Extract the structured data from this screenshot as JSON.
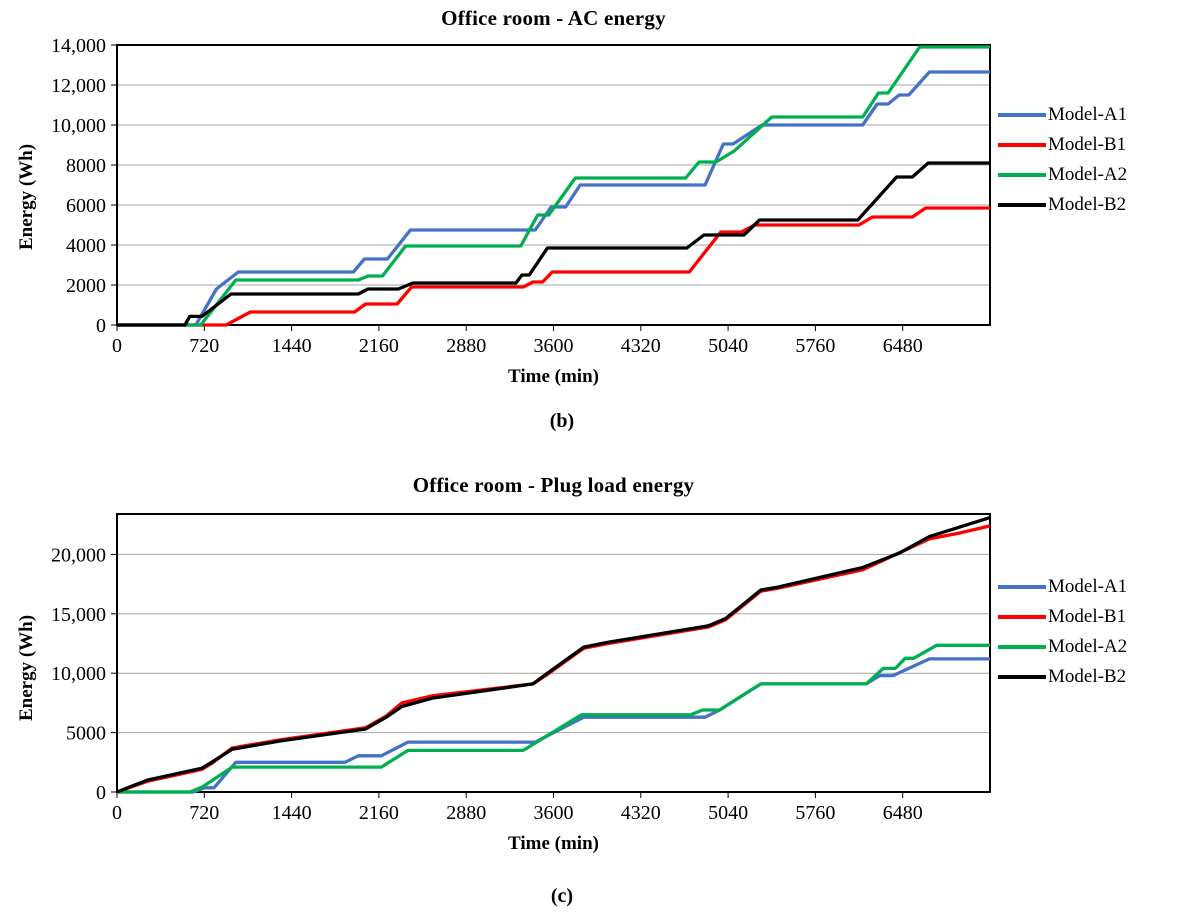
{
  "figure": {
    "background_color": "#ffffff",
    "grid_color": "#a6a6a6",
    "axis_color": "#000000"
  },
  "chart_data": [
    {
      "type": "line",
      "title": "Office room - AC energy",
      "caption": "(b)",
      "xlabel": "Time (min)",
      "ylabel": "Energy (Wh)",
      "xlim": [
        0,
        7200
      ],
      "ylim": [
        0,
        14000
      ],
      "plot_ymax": 14000,
      "grid": "horizontal",
      "legend_position": "right",
      "xticks": [
        {
          "value": 0,
          "label": "0"
        },
        {
          "value": 720,
          "label": "720"
        },
        {
          "value": 1440,
          "label": "1440"
        },
        {
          "value": 2160,
          "label": "2160"
        },
        {
          "value": 2880,
          "label": "2880"
        },
        {
          "value": 3600,
          "label": "3600"
        },
        {
          "value": 4320,
          "label": "4320"
        },
        {
          "value": 5040,
          "label": "5040"
        },
        {
          "value": 5760,
          "label": "5760"
        },
        {
          "value": 6480,
          "label": "6480"
        }
      ],
      "yticks": [
        {
          "value": 0,
          "label": "0"
        },
        {
          "value": 2000,
          "label": "2000"
        },
        {
          "value": 4000,
          "label": "4000"
        },
        {
          "value": 6000,
          "label": "6000"
        },
        {
          "value": 8000,
          "label": "8000"
        },
        {
          "value": 10000,
          "label": "10,000"
        },
        {
          "value": 12000,
          "label": "12,000"
        },
        {
          "value": 14000,
          "label": "14,000"
        }
      ],
      "series": [
        {
          "name": "Model-A1",
          "color": "#4472C4",
          "points": [
            [
              0,
              0
            ],
            [
              650,
              0
            ],
            [
              820,
              1800
            ],
            [
              1000,
              2650
            ],
            [
              1950,
              2650
            ],
            [
              2040,
              3300
            ],
            [
              2230,
              3300
            ],
            [
              2420,
              4750
            ],
            [
              3450,
              4750
            ],
            [
              3580,
              5900
            ],
            [
              3700,
              5900
            ],
            [
              3820,
              7000
            ],
            [
              4850,
              7000
            ],
            [
              5000,
              9050
            ],
            [
              5080,
              9050
            ],
            [
              5320,
              10000
            ],
            [
              6150,
              10000
            ],
            [
              6270,
              11050
            ],
            [
              6360,
              11050
            ],
            [
              6450,
              11500
            ],
            [
              6530,
              11500
            ],
            [
              6700,
              12650
            ],
            [
              7200,
              12650
            ]
          ]
        },
        {
          "name": "Model-B1",
          "color": "#FF0000",
          "points": [
            [
              0,
              0
            ],
            [
              900,
              0
            ],
            [
              1100,
              650
            ],
            [
              1960,
              650
            ],
            [
              2050,
              1050
            ],
            [
              2310,
              1050
            ],
            [
              2430,
              1900
            ],
            [
              3350,
              1900
            ],
            [
              3430,
              2150
            ],
            [
              3510,
              2150
            ],
            [
              3590,
              2650
            ],
            [
              4720,
              2650
            ],
            [
              4980,
              4650
            ],
            [
              5150,
              4650
            ],
            [
              5260,
              5000
            ],
            [
              6120,
              5000
            ],
            [
              6230,
              5400
            ],
            [
              6560,
              5400
            ],
            [
              6670,
              5850
            ],
            [
              7200,
              5850
            ]
          ]
        },
        {
          "name": "Model-A2",
          "color": "#00B050",
          "points": [
            [
              0,
              0
            ],
            [
              690,
              0
            ],
            [
              980,
              2250
            ],
            [
              1990,
              2250
            ],
            [
              2070,
              2450
            ],
            [
              2190,
              2450
            ],
            [
              2380,
              3950
            ],
            [
              3330,
              3950
            ],
            [
              3470,
              5500
            ],
            [
              3560,
              5500
            ],
            [
              3780,
              7350
            ],
            [
              4690,
              7350
            ],
            [
              4800,
              8150
            ],
            [
              4940,
              8150
            ],
            [
              5090,
              8700
            ],
            [
              5400,
              10400
            ],
            [
              6150,
              10400
            ],
            [
              6280,
              11600
            ],
            [
              6360,
              11600
            ],
            [
              6620,
              13900
            ],
            [
              7200,
              13900
            ]
          ]
        },
        {
          "name": "Model-B2",
          "color": "#000000",
          "points": [
            [
              0,
              0
            ],
            [
              560,
              0
            ],
            [
              600,
              430
            ],
            [
              700,
              430
            ],
            [
              940,
              1550
            ],
            [
              1990,
              1550
            ],
            [
              2070,
              1800
            ],
            [
              2320,
              1800
            ],
            [
              2440,
              2100
            ],
            [
              3290,
              2100
            ],
            [
              3340,
              2500
            ],
            [
              3400,
              2500
            ],
            [
              3550,
              3850
            ],
            [
              4700,
              3850
            ],
            [
              4840,
              4500
            ],
            [
              5170,
              4500
            ],
            [
              5300,
              5250
            ],
            [
              6110,
              5250
            ],
            [
              6430,
              7400
            ],
            [
              6560,
              7400
            ],
            [
              6690,
              8100
            ],
            [
              7200,
              8100
            ]
          ]
        }
      ]
    },
    {
      "type": "line",
      "title": "Office room - Plug load energy",
      "caption": "(c)",
      "xlabel": "Time (min)",
      "ylabel": "Energy (Wh)",
      "xlim": [
        0,
        7200
      ],
      "ylim": [
        0,
        23400
      ],
      "plot_ymax": 23400,
      "grid": "horizontal",
      "legend_position": "right",
      "xticks": [
        {
          "value": 0,
          "label": "0"
        },
        {
          "value": 720,
          "label": "720"
        },
        {
          "value": 1440,
          "label": "1440"
        },
        {
          "value": 2160,
          "label": "2160"
        },
        {
          "value": 2880,
          "label": "2880"
        },
        {
          "value": 3600,
          "label": "3600"
        },
        {
          "value": 4320,
          "label": "4320"
        },
        {
          "value": 5040,
          "label": "5040"
        },
        {
          "value": 5760,
          "label": "5760"
        },
        {
          "value": 6480,
          "label": "6480"
        }
      ],
      "yticks": [
        {
          "value": 0,
          "label": "0"
        },
        {
          "value": 5000,
          "label": "5000"
        },
        {
          "value": 10000,
          "label": "10,000"
        },
        {
          "value": 15000,
          "label": "15,000"
        },
        {
          "value": 20000,
          "label": "20,000"
        }
      ],
      "series": [
        {
          "name": "Model-A1",
          "color": "#4472C4",
          "points": [
            [
              0,
              0
            ],
            [
              630,
              0
            ],
            [
              720,
              350
            ],
            [
              800,
              350
            ],
            [
              980,
              2500
            ],
            [
              1880,
              2500
            ],
            [
              1990,
              3050
            ],
            [
              2180,
              3050
            ],
            [
              2400,
              4200
            ],
            [
              3450,
              4200
            ],
            [
              3620,
              5100
            ],
            [
              3850,
              6300
            ],
            [
              4850,
              6300
            ],
            [
              4970,
              6900
            ],
            [
              5310,
              9100
            ],
            [
              6180,
              9100
            ],
            [
              6290,
              9800
            ],
            [
              6400,
              9800
            ],
            [
              6700,
              11200
            ],
            [
              7200,
              11200
            ]
          ]
        },
        {
          "name": "Model-B1",
          "color": "#FF0000",
          "points": [
            [
              0,
              0
            ],
            [
              250,
              900
            ],
            [
              700,
              1900
            ],
            [
              780,
              2400
            ],
            [
              950,
              3700
            ],
            [
              1350,
              4400
            ],
            [
              2050,
              5400
            ],
            [
              2220,
              6400
            ],
            [
              2350,
              7500
            ],
            [
              2600,
              8100
            ],
            [
              3430,
              9100
            ],
            [
              3550,
              9900
            ],
            [
              3850,
              12100
            ],
            [
              4050,
              12500
            ],
            [
              4880,
              13900
            ],
            [
              5020,
              14500
            ],
            [
              5310,
              16900
            ],
            [
              5450,
              17150
            ],
            [
              6150,
              18700
            ],
            [
              6700,
              21300
            ],
            [
              6950,
              21800
            ],
            [
              7200,
              22400
            ]
          ]
        },
        {
          "name": "Model-A2",
          "color": "#00B050",
          "points": [
            [
              0,
              0
            ],
            [
              600,
              0
            ],
            [
              700,
              400
            ],
            [
              950,
              2100
            ],
            [
              2180,
              2100
            ],
            [
              2400,
              3500
            ],
            [
              3350,
              3500
            ],
            [
              3830,
              6500
            ],
            [
              4730,
              6500
            ],
            [
              4830,
              6900
            ],
            [
              4970,
              6900
            ],
            [
              5310,
              9100
            ],
            [
              6180,
              9100
            ],
            [
              6320,
              10400
            ],
            [
              6420,
              10400
            ],
            [
              6500,
              11250
            ],
            [
              6570,
              11250
            ],
            [
              6760,
              12350
            ],
            [
              7200,
              12350
            ]
          ]
        },
        {
          "name": "Model-B2",
          "color": "#000000",
          "points": [
            [
              0,
              0
            ],
            [
              250,
              1000
            ],
            [
              700,
              2000
            ],
            [
              780,
              2500
            ],
            [
              950,
              3600
            ],
            [
              1350,
              4300
            ],
            [
              2050,
              5300
            ],
            [
              2220,
              6300
            ],
            [
              2350,
              7200
            ],
            [
              2600,
              7900
            ],
            [
              3430,
              9100
            ],
            [
              3550,
              10000
            ],
            [
              3850,
              12200
            ],
            [
              4050,
              12600
            ],
            [
              4880,
              14000
            ],
            [
              5020,
              14600
            ],
            [
              5310,
              17000
            ],
            [
              5450,
              17250
            ],
            [
              6150,
              18900
            ],
            [
              6450,
              20100
            ],
            [
              6700,
              21500
            ],
            [
              6950,
              22300
            ],
            [
              7200,
              23100
            ]
          ]
        }
      ]
    }
  ]
}
